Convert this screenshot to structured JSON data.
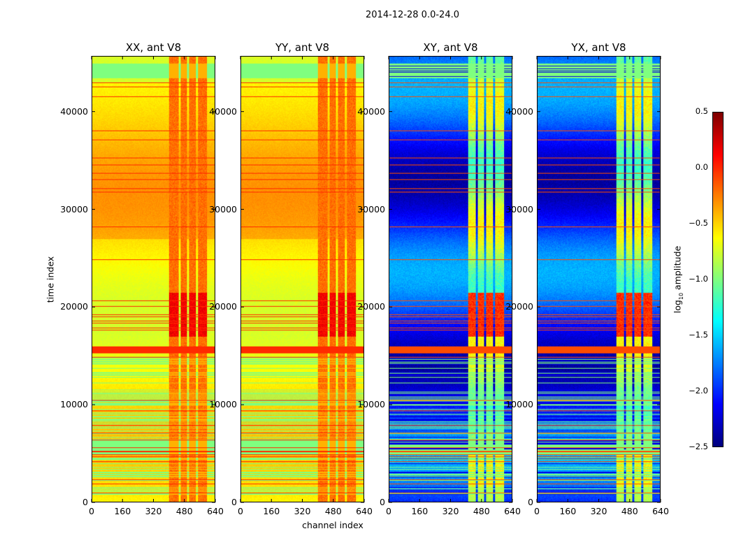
{
  "chart_data": {
    "type": "heatmap",
    "title": "2014-12-28 0.0-24.0",
    "xlabel": "channel index",
    "ylabel": "time index",
    "xlim": [
      0,
      640
    ],
    "ylim": [
      0,
      45700
    ],
    "xticks": [
      "0",
      "160",
      "320",
      "480",
      "640"
    ],
    "yticks": [
      "0",
      "10000",
      "20000",
      "30000",
      "40000"
    ],
    "xtick_values": [
      0,
      160,
      320,
      480,
      640
    ],
    "ytick_values": [
      0,
      10000,
      20000,
      30000,
      40000
    ],
    "colormap": "jet",
    "panels": [
      {
        "title": "XX, ant V8",
        "kind": "auto",
        "base_log_amp": -0.6,
        "band_channels": [
          400,
          600
        ],
        "band_log_amp": -0.2
      },
      {
        "title": "YY, ant V8",
        "kind": "auto",
        "base_log_amp": -0.6,
        "band_channels": [
          400,
          600
        ],
        "band_log_amp": -0.2
      },
      {
        "title": "XY, ant V8",
        "kind": "cross",
        "base_log_amp": -2.0,
        "band_channels": [
          410,
          600
        ],
        "band_log_amp": -0.9
      },
      {
        "title": "YX, ant V8",
        "kind": "cross",
        "base_log_amp": -2.0,
        "band_channels": [
          410,
          600
        ],
        "band_log_amp": -0.9
      }
    ],
    "colorbar": {
      "label_prefix": "log",
      "label_sub": "10",
      "label_suffix": " amplitude",
      "range": [
        -2.5,
        0.5
      ],
      "ticks": [
        "0.5",
        "0.0",
        "−0.5",
        "−1.0",
        "−1.5",
        "−2.0",
        "−2.5"
      ],
      "tick_values": [
        0.5,
        0.0,
        -0.5,
        -1.0,
        -1.5,
        -2.0,
        -2.5
      ]
    }
  }
}
